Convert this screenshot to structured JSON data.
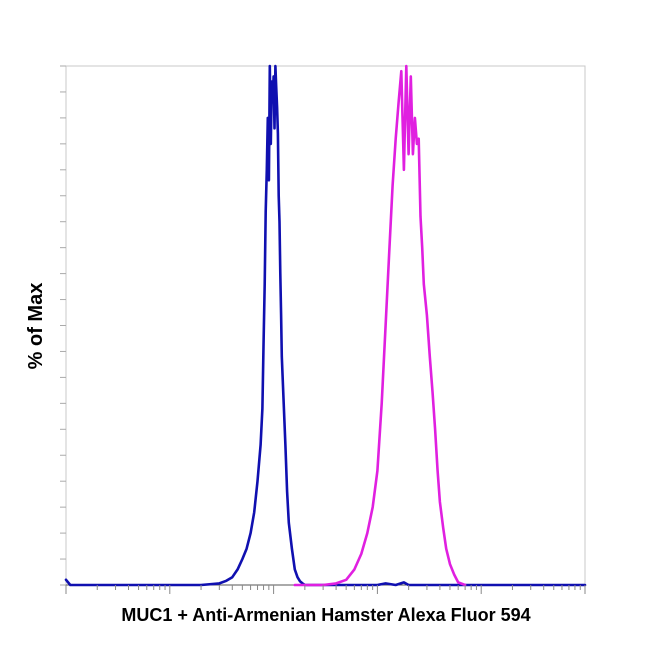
{
  "chart_data": {
    "type": "line",
    "title": "",
    "xlabel": "MUC1 + Anti-Armenian Hamster Alexa Fluor 594",
    "ylabel": "% of Max",
    "x_scale": "log",
    "xlim": [
      1,
      100000
    ],
    "ylim": [
      0,
      100
    ],
    "grid": false,
    "legend": "none",
    "series": [
      {
        "color": "#1010b0",
        "x": [
          1,
          1.1,
          2,
          5,
          10,
          20,
          30,
          35,
          40,
          45,
          50,
          55,
          60,
          65,
          70,
          75,
          78,
          80,
          82,
          84,
          86,
          88,
          90,
          92,
          94,
          96,
          98,
          100,
          102,
          104,
          106,
          108,
          110,
          112,
          114,
          116,
          118,
          120,
          125,
          130,
          135,
          140,
          150,
          160,
          170,
          180,
          190,
          200,
          300,
          500,
          800,
          1000,
          1200,
          1500,
          1800,
          2000,
          3000,
          5000,
          10000,
          100000
        ],
        "y": [
          1,
          0,
          0,
          0,
          0,
          0,
          0.3,
          0.8,
          1.5,
          3,
          5,
          7,
          10,
          14,
          20,
          27,
          34,
          46,
          58,
          72,
          80,
          90,
          78,
          100,
          85,
          97,
          93,
          98,
          88,
          100,
          96,
          92,
          87,
          75,
          70,
          60,
          52,
          44,
          35,
          27,
          18,
          12,
          7,
          3,
          1.5,
          0.7,
          0.3,
          0,
          0,
          0,
          0,
          0,
          0.3,
          0,
          0.5,
          0,
          0,
          0,
          0,
          0
        ]
      },
      {
        "color": "#e020e0",
        "x": [
          160,
          200,
          300,
          400,
          500,
          600,
          700,
          800,
          900,
          1000,
          1100,
          1200,
          1300,
          1400,
          1500,
          1600,
          1700,
          1800,
          1900,
          2000,
          2100,
          2200,
          2300,
          2400,
          2500,
          2600,
          2700,
          2800,
          3000,
          3200,
          3400,
          3600,
          3800,
          4000,
          4300,
          4600,
          5000,
          5500,
          6000,
          7000
        ],
        "y": [
          0,
          0,
          0,
          0.3,
          1,
          3,
          6,
          10,
          15,
          22,
          35,
          50,
          64,
          77,
          86,
          93,
          99,
          80,
          100,
          83,
          98,
          83,
          90,
          85,
          86,
          71,
          65,
          58,
          52,
          44,
          37,
          30,
          22,
          16,
          11,
          7,
          4,
          2,
          0.5,
          0
        ]
      }
    ]
  }
}
